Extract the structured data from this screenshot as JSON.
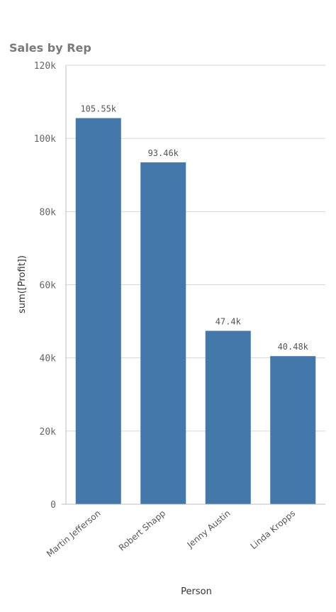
{
  "chart_data": {
    "type": "bar",
    "title": "Sales by Rep",
    "xlabel": "Person",
    "ylabel": "sum([Profit])",
    "categories": [
      "Martin Jefferson",
      "Robert Shapp",
      "Jenny Austin",
      "Linda Kropps"
    ],
    "values": [
      105550,
      93460,
      47400,
      40480
    ],
    "data_labels": [
      "105.55k",
      "93.46k",
      "47.4k",
      "40.48k"
    ],
    "ylim": [
      0,
      120000
    ],
    "y_ticks": [
      0,
      20000,
      40000,
      60000,
      80000,
      100000,
      120000
    ],
    "y_tick_labels": [
      "0",
      "20k",
      "40k",
      "60k",
      "80k",
      "100k",
      "120k"
    ],
    "grid": true,
    "bar_color": "#4477aa"
  }
}
